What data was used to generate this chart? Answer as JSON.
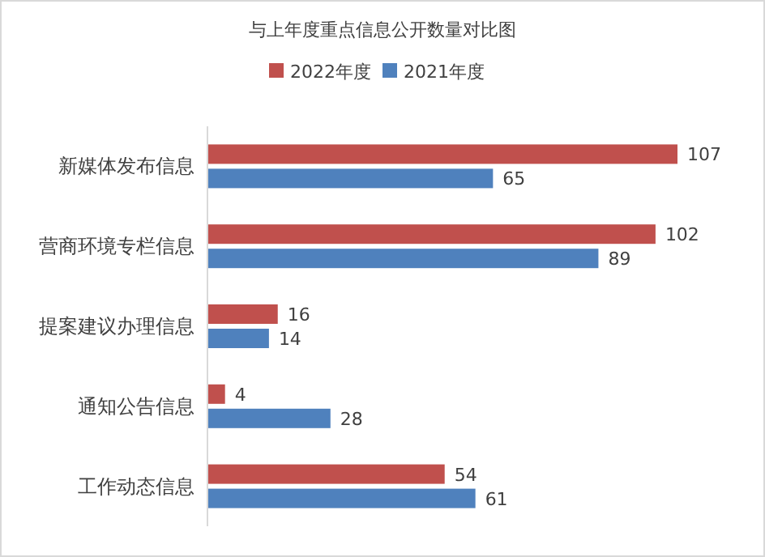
{
  "chart_data": {
    "type": "bar",
    "orientation": "horizontal",
    "title": "与上年度重点信息公开数量对比图",
    "categories": [
      "新媒体发布信息",
      "营商环境专栏信息",
      "提案建议办理信息",
      "通知公告信息",
      "工作动态信息"
    ],
    "series": [
      {
        "name": "2022年度",
        "color": "#c0504d",
        "values": [
          107,
          102,
          16,
          4,
          54
        ]
      },
      {
        "name": "2021年度",
        "color": "#4f81bd",
        "values": [
          65,
          89,
          14,
          28,
          61
        ]
      }
    ],
    "data_labels": true,
    "legend": "top"
  }
}
